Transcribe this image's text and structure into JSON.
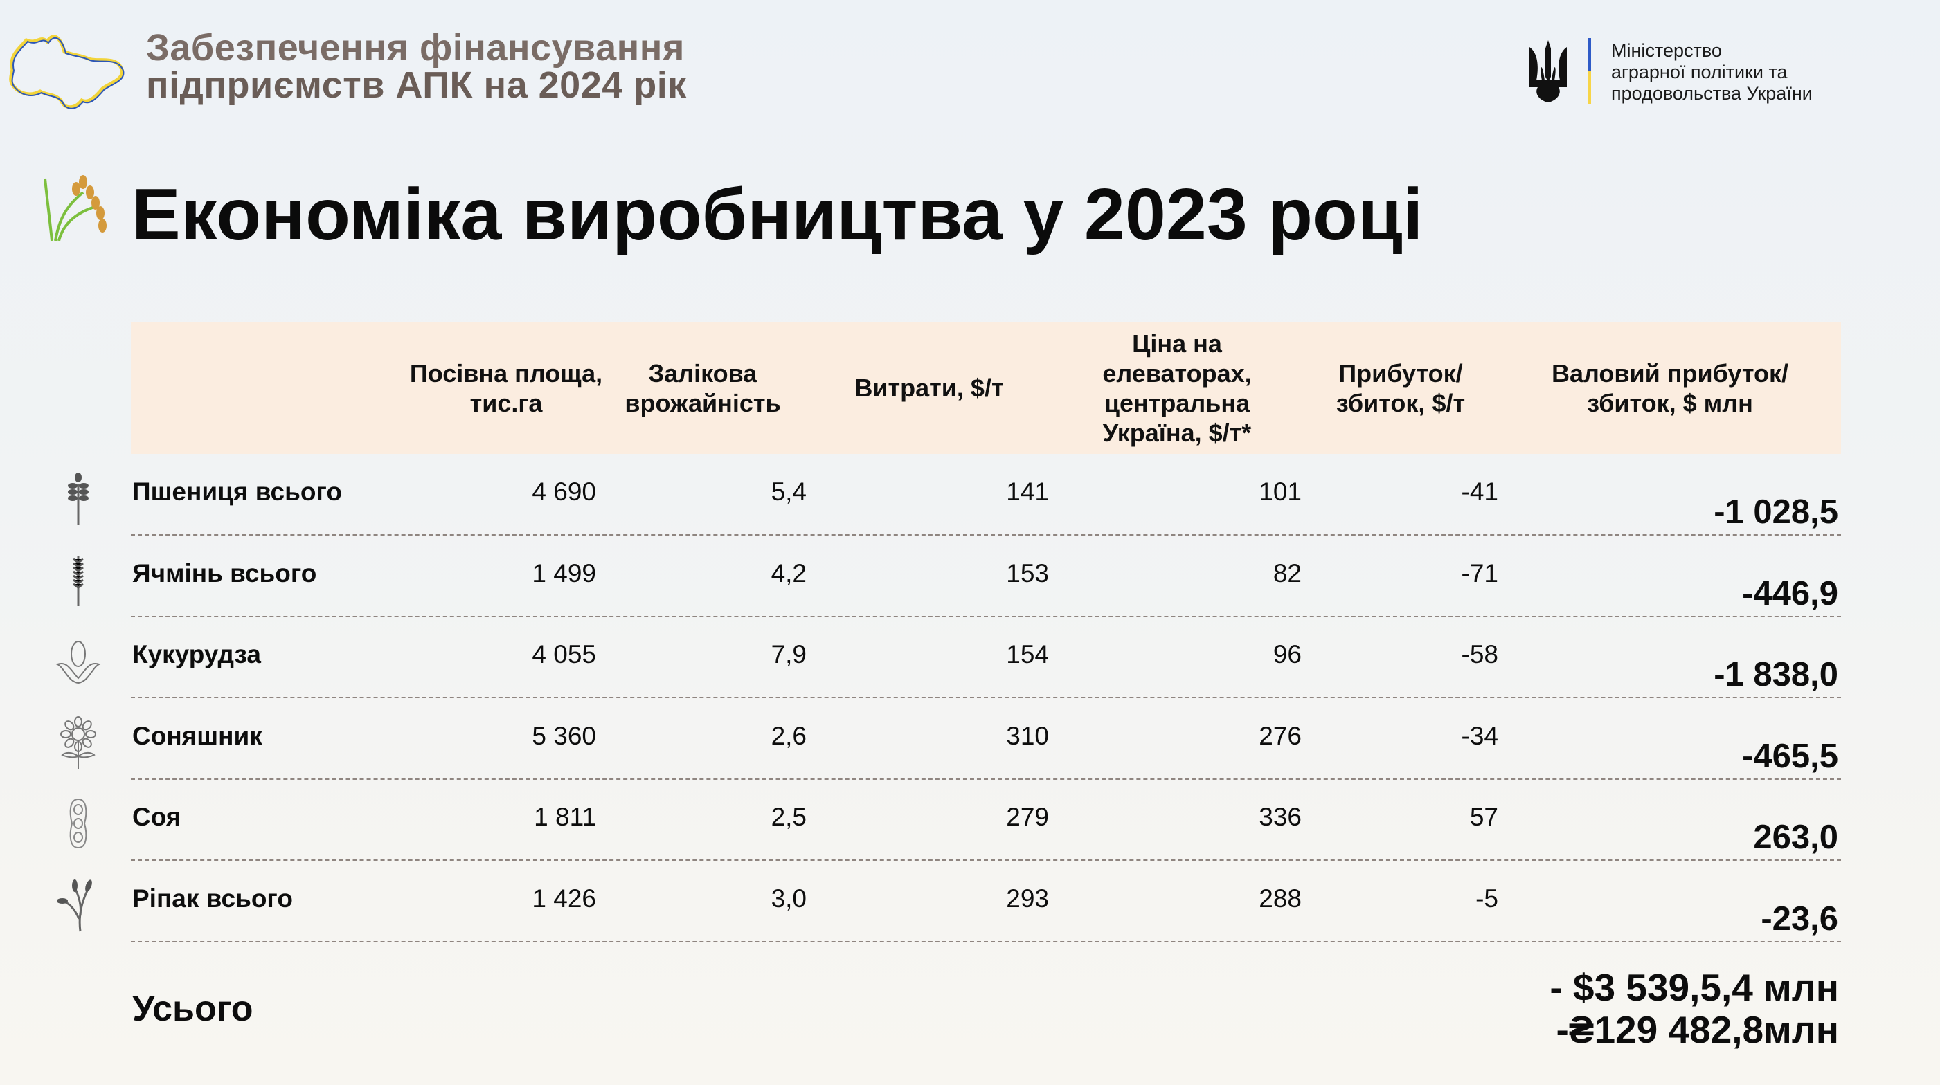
{
  "header": {
    "title_line1": "Забезпечення фінансування",
    "title_line2": "підприємств АПК на 2024 рік",
    "ministry_line1": "Міністерство",
    "ministry_line2": "аграрної політики та",
    "ministry_line3": "продовольства України"
  },
  "page_title": "Економіка виробництва у 2023 році",
  "table": {
    "columns": [
      "Посівна площа, тис.га",
      "Залікова врожайність",
      "Витрати, $/т",
      "Ціна на елеваторах, центральна Україна, $/т*",
      "Прибуток/ збиток, $/т",
      "Валовий прибуток/збиток, $ млн"
    ],
    "rows": [
      {
        "icon": "wheat-icon",
        "name": "Пшениця всього",
        "area": "4 690",
        "yield": "5,4",
        "costs": "141",
        "price": "101",
        "profit": "-41",
        "gross": "-1 028,5"
      },
      {
        "icon": "barley-icon",
        "name": "Ячмінь всього",
        "area": "1 499",
        "yield": "4,2",
        "costs": "153",
        "price": "82",
        "profit": "-71",
        "gross": "-446,9"
      },
      {
        "icon": "corn-icon",
        "name": "Кукурудза",
        "area": "4 055",
        "yield": "7,9",
        "costs": "154",
        "price": "96",
        "profit": "-58",
        "gross": "-1 838,0"
      },
      {
        "icon": "sunflower-icon",
        "name": "Соняшник",
        "area": "5 360",
        "yield": "2,6",
        "costs": "310",
        "price": "276",
        "profit": "-34",
        "gross": "-465,5"
      },
      {
        "icon": "soy-icon",
        "name": "Соя",
        "area": "1 811",
        "yield": "2,5",
        "costs": "279",
        "price": "336",
        "profit": "57",
        "gross": "263,0"
      },
      {
        "icon": "rapeseed-icon",
        "name": "Ріпак всього",
        "area": "1 426",
        "yield": "3,0",
        "costs": "293",
        "price": "288",
        "profit": "-5",
        "gross": "-23,6"
      }
    ],
    "total_label": "Усього",
    "total_usd": "- $3 539,5,4 млн",
    "total_uah": "-₴129 482,8млн"
  },
  "colors": {
    "header_band": "#fbede0",
    "header_text": "#7a6c66",
    "flag_blue": "#2f5bc7",
    "flag_yellow": "#f7d548"
  }
}
